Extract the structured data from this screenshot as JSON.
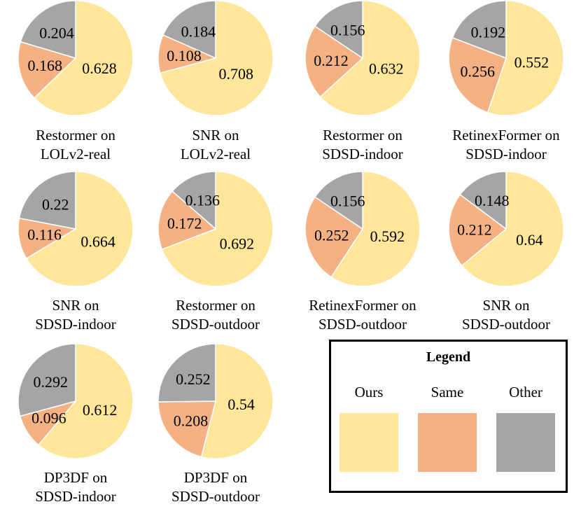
{
  "chart_data": {
    "type": "pie",
    "colors": {
      "Ours": "#FFE699",
      "Same": "#F4B183",
      "Other": "#A5A5A5"
    },
    "legend": {
      "title": "Legend",
      "placement": "bottom-right",
      "entries": [
        "Ours",
        "Same",
        "Other"
      ]
    },
    "pies": [
      {
        "title": [
          "Restormer on",
          "LOLv2-real"
        ],
        "values": {
          "Ours": 0.628,
          "Same": 0.168,
          "Other": 0.204
        }
      },
      {
        "title": [
          "SNR on",
          "LOLv2-real"
        ],
        "values": {
          "Ours": 0.708,
          "Same": 0.108,
          "Other": 0.184
        }
      },
      {
        "title": [
          "Restormer on",
          "SDSD-indoor"
        ],
        "values": {
          "Ours": 0.632,
          "Same": 0.212,
          "Other": 0.156
        }
      },
      {
        "title": [
          "RetinexFormer on",
          "SDSD-indoor"
        ],
        "values": {
          "Ours": 0.552,
          "Same": 0.256,
          "Other": 0.192
        }
      },
      {
        "title": [
          "SNR on",
          "SDSD-indoor"
        ],
        "values": {
          "Ours": 0.664,
          "Same": 0.116,
          "Other": 0.22
        }
      },
      {
        "title": [
          "Restormer on",
          "SDSD-outdoor"
        ],
        "values": {
          "Ours": 0.692,
          "Same": 0.172,
          "Other": 0.136
        }
      },
      {
        "title": [
          "RetinexFormer on",
          "SDSD-outdoor"
        ],
        "values": {
          "Ours": 0.592,
          "Same": 0.252,
          "Other": 0.156
        }
      },
      {
        "title": [
          "SNR on",
          "SDSD-outdoor"
        ],
        "values": {
          "Ours": 0.64,
          "Same": 0.212,
          "Other": 0.148
        }
      },
      {
        "title": [
          "DP3DF on",
          "SDSD-indoor"
        ],
        "values": {
          "Ours": 0.612,
          "Same": 0.096,
          "Other": 0.292
        }
      },
      {
        "title": [
          "DP3DF on",
          "SDSD-outdoor"
        ],
        "values": {
          "Ours": 0.54,
          "Same": 0.208,
          "Other": 0.252
        }
      }
    ]
  }
}
